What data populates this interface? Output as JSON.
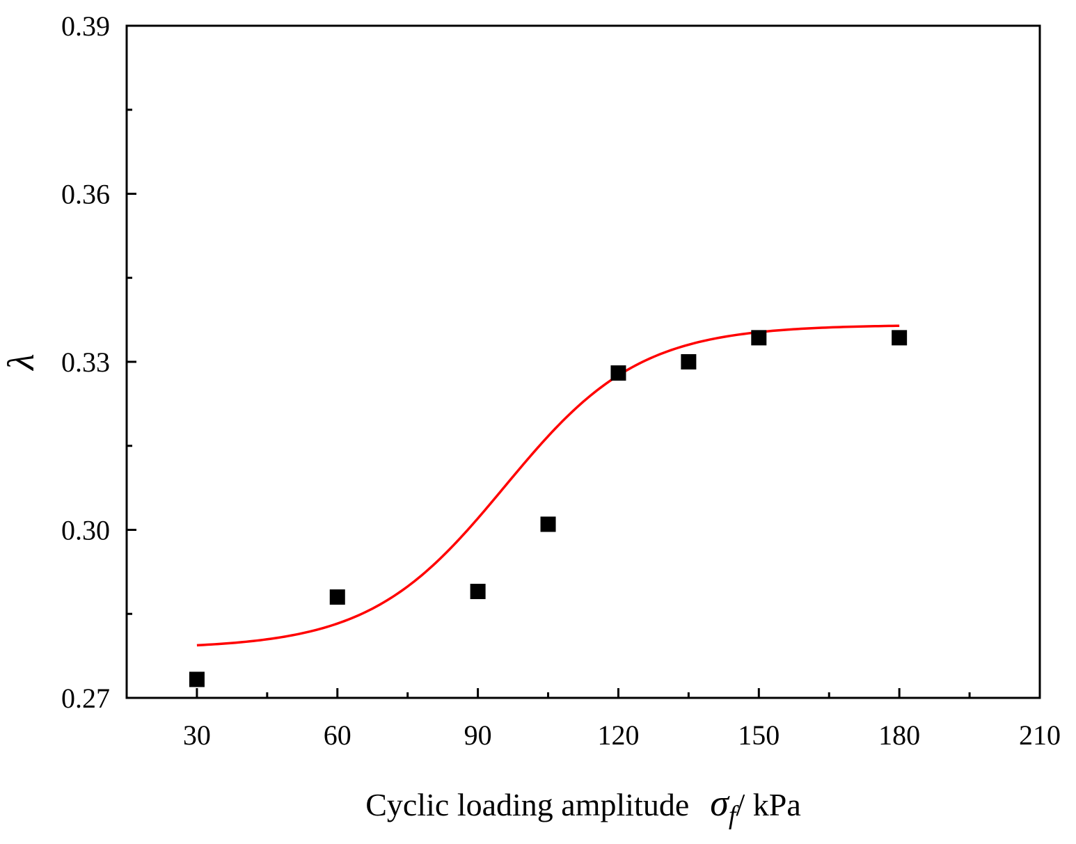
{
  "chart_data": {
    "type": "scatter",
    "xlabel": "Cyclic loading amplitude",
    "xlabel_symbol": "σ",
    "xlabel_subscript": "f",
    "xlabel_unit": "/ kPa",
    "ylabel": "λ",
    "xlim": [
      15,
      210
    ],
    "ylim": [
      0.27,
      0.39
    ],
    "xticks": [
      30,
      60,
      90,
      120,
      150,
      180,
      210
    ],
    "xtick_labels": [
      "30",
      "60",
      "90",
      "120",
      "150",
      "180",
      "210"
    ],
    "xminor": [
      45,
      75,
      105,
      135,
      165,
      195
    ],
    "yticks": [
      0.27,
      0.3,
      0.33,
      0.36,
      0.39
    ],
    "ytick_labels": [
      "0.27",
      "0.30",
      "0.33",
      "0.36",
      "0.39"
    ],
    "yminor": [
      0.285,
      0.315,
      0.345,
      0.375
    ],
    "grid": false,
    "series": [
      {
        "kind": "scatter",
        "marker": "square",
        "color": "#000000",
        "x": [
          30,
          60,
          90,
          105,
          120,
          135,
          150,
          180
        ],
        "y": [
          0.2733,
          0.288,
          0.289,
          0.301,
          0.328,
          0.33,
          0.3343,
          0.3343
        ]
      },
      {
        "kind": "line",
        "color": "#ff0000",
        "fit": {
          "A1": 0.2788,
          "A2": 0.3366,
          "x0": 95.7,
          "dx": 14.4
        },
        "x": [
          30,
          40,
          50,
          60,
          70,
          80,
          90,
          100,
          110,
          120,
          130,
          140,
          150,
          160,
          170,
          180
        ],
        "y": [
          0.2792,
          0.2796,
          0.2808,
          0.2826,
          0.2865,
          0.2925,
          0.2992,
          0.3064,
          0.3142,
          0.3196,
          0.3241,
          0.3286,
          0.3306,
          0.3324,
          0.3336,
          0.3343
        ]
      }
    ]
  }
}
